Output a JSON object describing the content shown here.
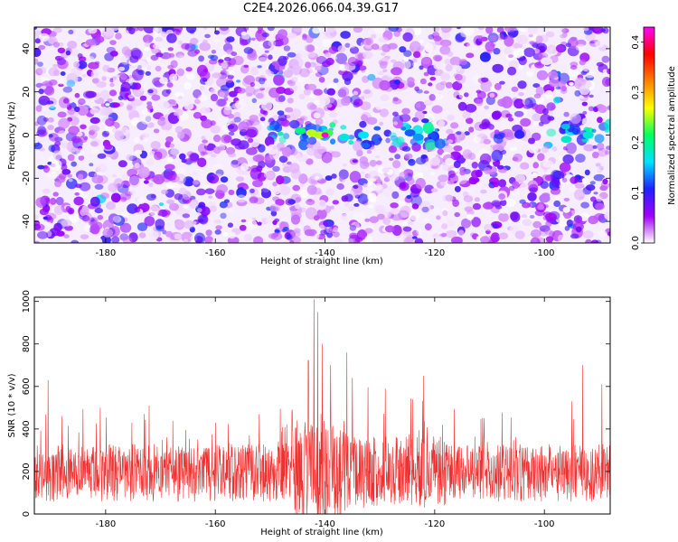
{
  "figure_title": "C2E4.2026.066.04.39.G17",
  "chart_data": [
    {
      "type": "heatmap",
      "title": "C2E4.2026.066.04.39.G17",
      "xlabel": "Height of straight line (km)",
      "ylabel": "Frequency (Hz)",
      "xlim": [
        -193,
        -88
      ],
      "ylim": [
        -50,
        50
      ],
      "x_ticks": [
        -180,
        -160,
        -140,
        -120,
        -100
      ],
      "y_ticks": [
        -40,
        -20,
        0,
        20,
        40
      ],
      "colorbar": {
        "label": "Normalized spectral amplitude",
        "range": [
          0.0,
          0.43
        ],
        "ticks": [
          "0.0",
          "0.1",
          "0.2",
          "0.3",
          "0.4"
        ],
        "tick_values": [
          0.0,
          0.1,
          0.2,
          0.3,
          0.4
        ],
        "colors": [
          "#ffffff",
          "#a000ff",
          "#2020ff",
          "#00e0ff",
          "#00ff60",
          "#ffff00",
          "#ff8000",
          "#ff0000",
          "#ff00ff"
        ]
      },
      "signal_band": {
        "frequency_hz": 0,
        "segments": [
          [
            -150,
            -118
          ],
          [
            -100,
            -88
          ]
        ],
        "peak_height_km": -140,
        "peak_amplitude": 0.42
      },
      "low_amplitude_bands_km": [
        [
          -146,
          -141
        ],
        [
          -133,
          -128
        ],
        [
          -120,
          -117
        ]
      ]
    },
    {
      "type": "line",
      "xlabel": "Height of straight line (km)",
      "ylabel": "SNR (10 * v/v)",
      "xlim": [
        -193,
        -88
      ],
      "ylim": [
        0,
        1020
      ],
      "x_ticks": [
        -180,
        -160,
        -140,
        -120,
        -100
      ],
      "y_ticks": [
        0,
        200,
        400,
        600,
        800,
        1000
      ],
      "series": [
        {
          "name": "SNR",
          "color": "#f03030",
          "baseline": 180,
          "noise_amplitude": 170,
          "peaks": [
            {
              "x": -190.5,
              "y": 630
            },
            {
              "x": -188,
              "y": 460
            },
            {
              "x": -181,
              "y": 500
            },
            {
              "x": -173,
              "y": 470
            },
            {
              "x": -160,
              "y": 430
            },
            {
              "x": -152,
              "y": 470
            },
            {
              "x": -143,
              "y": 720
            },
            {
              "x": -142,
              "y": 1010
            },
            {
              "x": -141.3,
              "y": 950
            },
            {
              "x": -140.5,
              "y": 800
            },
            {
              "x": -139,
              "y": 700
            },
            {
              "x": -136,
              "y": 760
            },
            {
              "x": -135,
              "y": 640
            },
            {
              "x": -129,
              "y": 590
            },
            {
              "x": -124,
              "y": 540
            },
            {
              "x": -122,
              "y": 650
            },
            {
              "x": -111,
              "y": 450
            },
            {
              "x": -95,
              "y": 530
            },
            {
              "x": -93,
              "y": 700
            },
            {
              "x": -89.5,
              "y": 610
            }
          ]
        }
      ]
    }
  ]
}
